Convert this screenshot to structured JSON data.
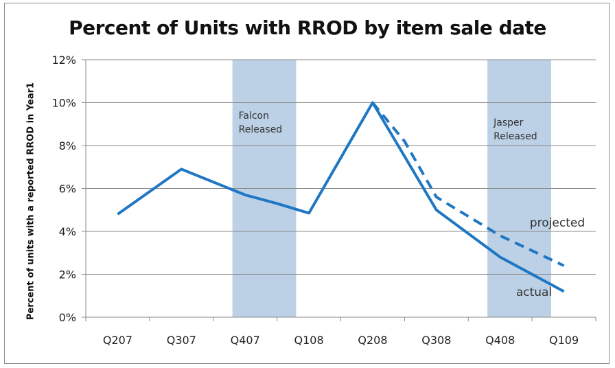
{
  "chart_data": {
    "type": "line",
    "title": "Percent of Units with RROD by item sale date",
    "ylabel": "Percent of units with a reported RROD in Year1",
    "xlabel": "",
    "categories": [
      "Q207",
      "Q307",
      "Q407",
      "Q108",
      "Q208",
      "Q308",
      "Q408",
      "Q109"
    ],
    "ylim": [
      0,
      12
    ],
    "y_ticks": [
      "0%",
      "2%",
      "4%",
      "6%",
      "8%",
      "10%",
      "12%"
    ],
    "y_tick_values": [
      0,
      2,
      4,
      6,
      8,
      10,
      12
    ],
    "grid": true,
    "series": [
      {
        "name": "actual",
        "style": "solid",
        "color": "#1f77c4",
        "points": [
          [
            0,
            4.8
          ],
          [
            1,
            6.9
          ],
          [
            2,
            5.7
          ],
          [
            2.5,
            5.3
          ],
          [
            3,
            4.85
          ],
          [
            4,
            10.0
          ],
          [
            5,
            5.0
          ],
          [
            6,
            2.8
          ],
          [
            7,
            1.2
          ]
        ]
      },
      {
        "name": "projected",
        "style": "dashed",
        "color": "#1f77c4",
        "points": [
          [
            4,
            10.0
          ],
          [
            4.5,
            8.2
          ],
          [
            5,
            5.6
          ],
          [
            6,
            3.8
          ],
          [
            7,
            2.4
          ]
        ]
      }
    ],
    "bands": [
      {
        "label_lines": [
          "Falcon",
          "Released"
        ],
        "from": 1.8,
        "to": 2.8,
        "color": "#bcd0e6"
      },
      {
        "label_lines": [
          "Jasper",
          "Released"
        ],
        "from": 5.8,
        "to": 6.8,
        "color": "#bcd0e6"
      }
    ]
  }
}
